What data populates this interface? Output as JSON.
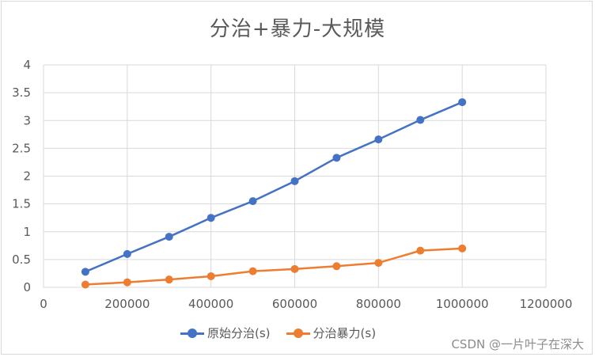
{
  "chart_data": {
    "type": "line",
    "title": "分治+暴力-大规模",
    "xlabel": "",
    "ylabel": "",
    "xlim": [
      0,
      1200000
    ],
    "ylim": [
      0,
      4
    ],
    "x_ticks": [
      "0",
      "200000",
      "400000",
      "600000",
      "800000",
      "1000000",
      "1200000"
    ],
    "x_tick_values": [
      0,
      200000,
      400000,
      600000,
      800000,
      1000000,
      1200000
    ],
    "y_ticks": [
      "0",
      "0.5",
      "1",
      "1.5",
      "2",
      "2.5",
      "3",
      "3.5",
      "4"
    ],
    "y_tick_values": [
      0,
      0.5,
      1,
      1.5,
      2,
      2.5,
      3,
      3.5,
      4
    ],
    "grid": true,
    "legend_position": "bottom",
    "x": [
      100000,
      200000,
      300000,
      400000,
      500000,
      600000,
      700000,
      800000,
      900000,
      1000000
    ],
    "series": [
      {
        "name": "原始分治(s)",
        "color": "#4472c4",
        "values": [
          0.28,
          0.6,
          0.91,
          1.25,
          1.55,
          1.91,
          2.33,
          2.66,
          3.01,
          3.33
        ]
      },
      {
        "name": "分治暴力(s)",
        "color": "#ed7d31",
        "values": [
          0.05,
          0.09,
          0.14,
          0.2,
          0.29,
          0.33,
          0.38,
          0.44,
          0.66,
          0.7
        ]
      }
    ]
  },
  "watermark": "CSDN @一片叶子在深大"
}
